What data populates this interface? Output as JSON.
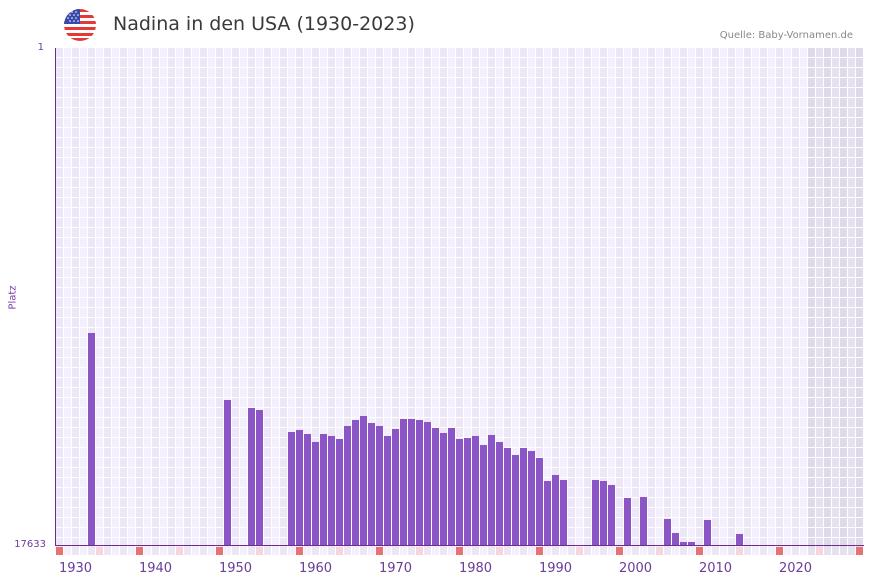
{
  "header": {
    "title": "Nadina in den USA (1930-2023)",
    "source": "Quelle: Baby-Vornamen.de",
    "flag_icon": "us-flag-icon"
  },
  "axis": {
    "y_top_label": "1",
    "y_bottom_label": "17633",
    "y_title": "Platz",
    "x_ticks": [
      "1930",
      "1940",
      "1950",
      "1960",
      "1970",
      "1980",
      "1990",
      "2000",
      "2010",
      "2020"
    ]
  },
  "colors": {
    "bar": "#8c55c6",
    "axis": "#6a2c8e",
    "grid_a": "#f3effc",
    "grid_b": "#ece6f7",
    "shade_a": "#e6e1ee",
    "shade_b": "#dfd9ea",
    "marker_red": "#e57373",
    "marker_pink": "#f5d6df"
  },
  "chart_data": {
    "type": "bar",
    "title": "Nadina in den USA (1930-2023)",
    "xlabel": "",
    "ylabel": "Platz",
    "ylim": [
      17633,
      1
    ],
    "y_inverted": true,
    "x_range": [
      1928,
      2028
    ],
    "shaded_from": 2022,
    "grid": true,
    "x": [
      1932,
      1949,
      1952,
      1953,
      1957,
      1958,
      1959,
      1960,
      1961,
      1962,
      1963,
      1964,
      1965,
      1966,
      1967,
      1968,
      1969,
      1970,
      1971,
      1972,
      1973,
      1974,
      1975,
      1976,
      1977,
      1978,
      1979,
      1980,
      1981,
      1982,
      1983,
      1984,
      1985,
      1986,
      1987,
      1988,
      1989,
      1990,
      1991,
      1995,
      1996,
      1997,
      1999,
      2001,
      2004,
      2005,
      2006,
      2007,
      2009,
      2013
    ],
    "values": [
      10112,
      12488,
      12773,
      12844,
      13624,
      13553,
      13695,
      13979,
      13695,
      13766,
      13872,
      13411,
      13198,
      13057,
      13305,
      13411,
      13766,
      13518,
      13163,
      13163,
      13198,
      13269,
      13482,
      13659,
      13482,
      13872,
      13837,
      13766,
      14085,
      13730,
      13979,
      14192,
      14440,
      14192,
      14298,
      14547,
      15362,
      15149,
      15327,
      15327,
      15362,
      15504,
      15966,
      15930,
      16710,
      17207,
      17527,
      17527,
      16746,
      17243
    ]
  }
}
